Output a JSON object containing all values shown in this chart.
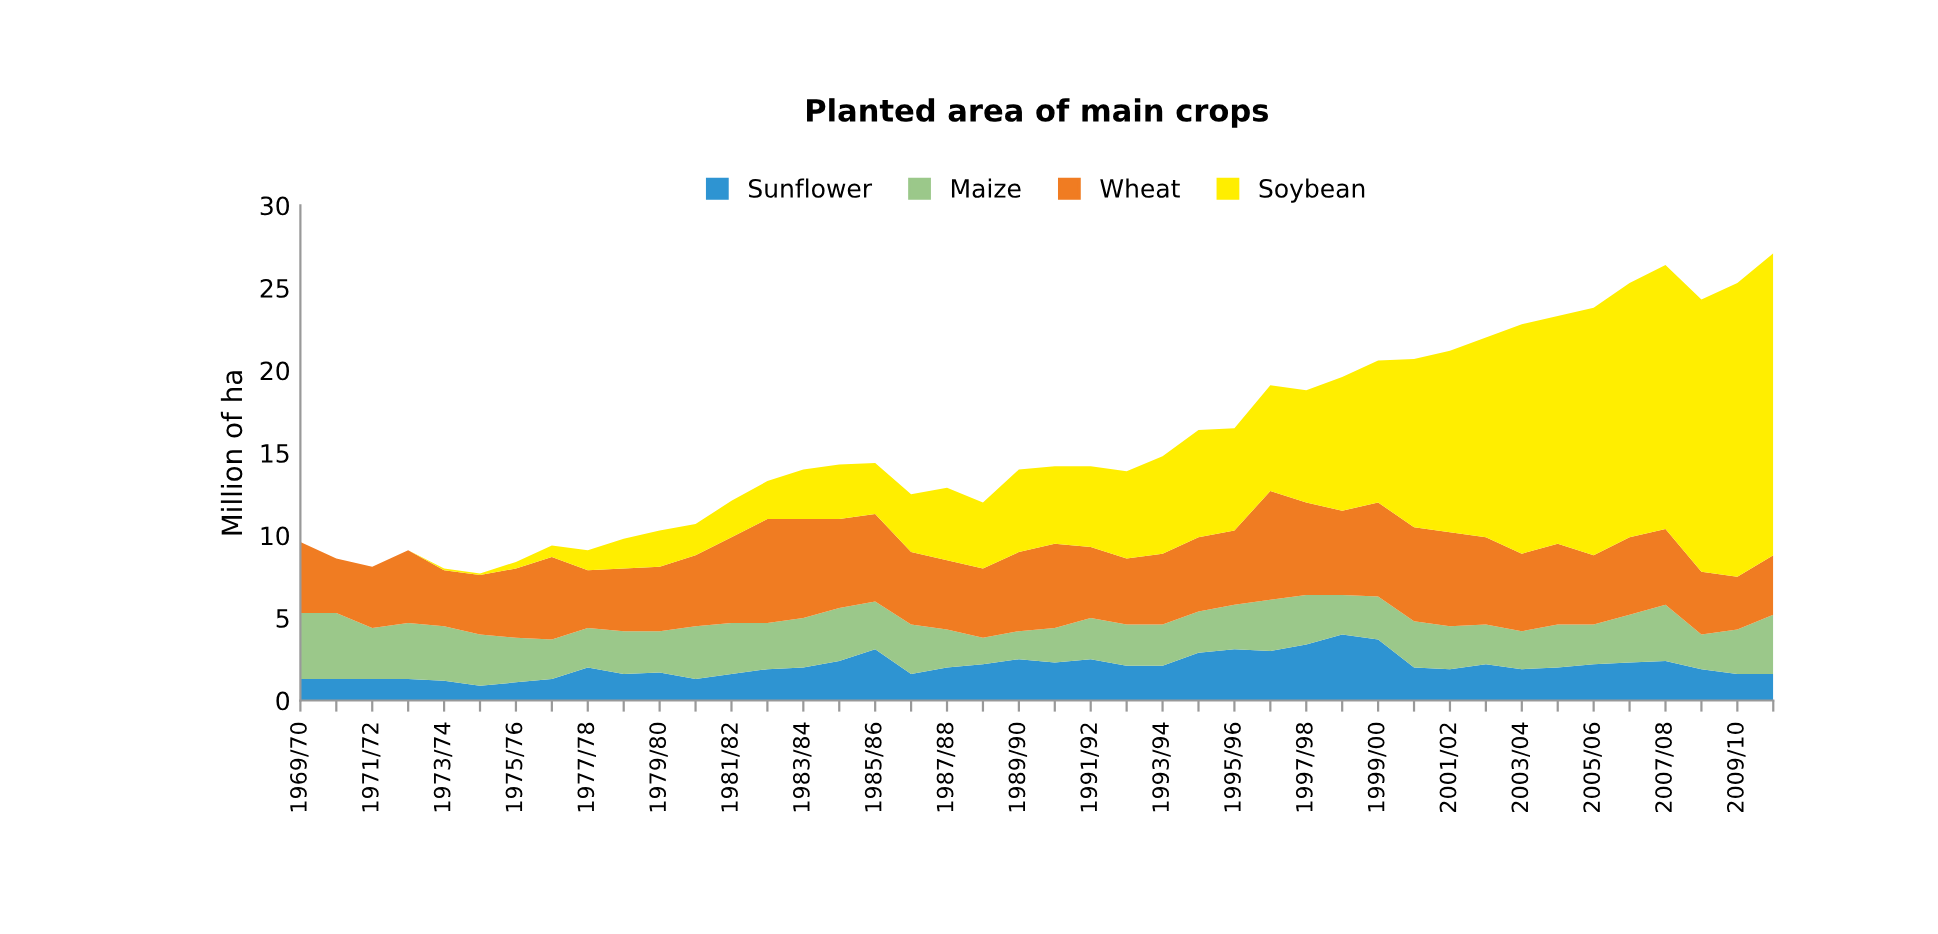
{
  "chart_data": {
    "type": "area",
    "stacked": true,
    "title": "Planted area of main crops",
    "ylabel": "Million of ha",
    "categories": [
      "1969/70",
      null,
      "1971/72",
      null,
      "1973/74",
      null,
      "1975/76",
      null,
      "1977/78",
      null,
      "1979/80",
      null,
      "1981/82",
      null,
      "1983/84",
      null,
      "1985/86",
      null,
      "1987/88",
      null,
      "1989/90",
      null,
      "1991/92",
      null,
      "1993/94",
      null,
      "1995/96",
      null,
      "1997/98",
      null,
      "1999/00",
      null,
      "2001/02",
      null,
      "2003/04",
      null,
      "2005/06",
      null,
      "2007/08",
      null,
      "2009/10",
      null
    ],
    "series": [
      {
        "name": "Sunflower",
        "color": "#2e94d2",
        "values": [
          1.3,
          1.3,
          1.3,
          1.3,
          1.2,
          0.9,
          1.1,
          1.3,
          2.0,
          1.6,
          1.7,
          1.3,
          1.6,
          1.9,
          2.0,
          2.4,
          3.1,
          1.6,
          2.0,
          2.2,
          2.5,
          2.3,
          2.5,
          2.1,
          2.1,
          2.9,
          3.1,
          3.0,
          3.4,
          4.0,
          3.7,
          2.0,
          1.9,
          2.2,
          1.9,
          2.0,
          2.2,
          2.3,
          2.4,
          1.9,
          1.6,
          1.6
        ]
      },
      {
        "name": "Maize",
        "color": "#9bc88a",
        "values": [
          4.0,
          4.0,
          3.1,
          3.4,
          3.3,
          3.1,
          2.7,
          2.4,
          2.4,
          2.6,
          2.5,
          3.2,
          3.1,
          2.8,
          3.0,
          3.2,
          2.9,
          3.0,
          2.3,
          1.6,
          1.7,
          2.1,
          2.5,
          2.5,
          2.5,
          2.5,
          2.7,
          3.1,
          3.0,
          2.4,
          2.6,
          2.8,
          2.6,
          2.4,
          2.3,
          2.6,
          2.4,
          2.9,
          3.4,
          2.1,
          2.7,
          3.6
        ]
      },
      {
        "name": "Wheat",
        "color": "#f07c22",
        "values": [
          4.3,
          3.3,
          3.7,
          4.4,
          3.4,
          3.6,
          4.2,
          5.0,
          3.5,
          3.8,
          3.9,
          4.3,
          5.2,
          6.3,
          6.0,
          5.4,
          5.3,
          4.4,
          4.2,
          4.2,
          4.8,
          5.1,
          4.3,
          4.0,
          4.3,
          4.5,
          4.5,
          6.6,
          5.6,
          5.1,
          5.7,
          5.7,
          5.7,
          5.3,
          4.7,
          4.9,
          4.2,
          4.7,
          4.6,
          3.8,
          3.2,
          3.6
        ]
      },
      {
        "name": "Soybean",
        "color": "#ffee00",
        "values": [
          0,
          0,
          0,
          0,
          0.1,
          0.1,
          0.4,
          0.7,
          1.2,
          1.8,
          2.2,
          1.9,
          2.2,
          2.3,
          3.0,
          3.3,
          3.1,
          3.5,
          4.4,
          4.0,
          5.0,
          4.7,
          4.9,
          5.3,
          5.9,
          6.5,
          6.2,
          6.4,
          6.8,
          8.1,
          8.6,
          10.2,
          11.0,
          12.1,
          13.9,
          13.8,
          15.0,
          15.4,
          16.0,
          16.5,
          17.8,
          18.3
        ]
      }
    ],
    "ylim": [
      0,
      30
    ],
    "yticks": [
      0,
      5,
      10,
      15,
      20,
      25,
      30
    ],
    "grid": false,
    "legend": "top"
  }
}
